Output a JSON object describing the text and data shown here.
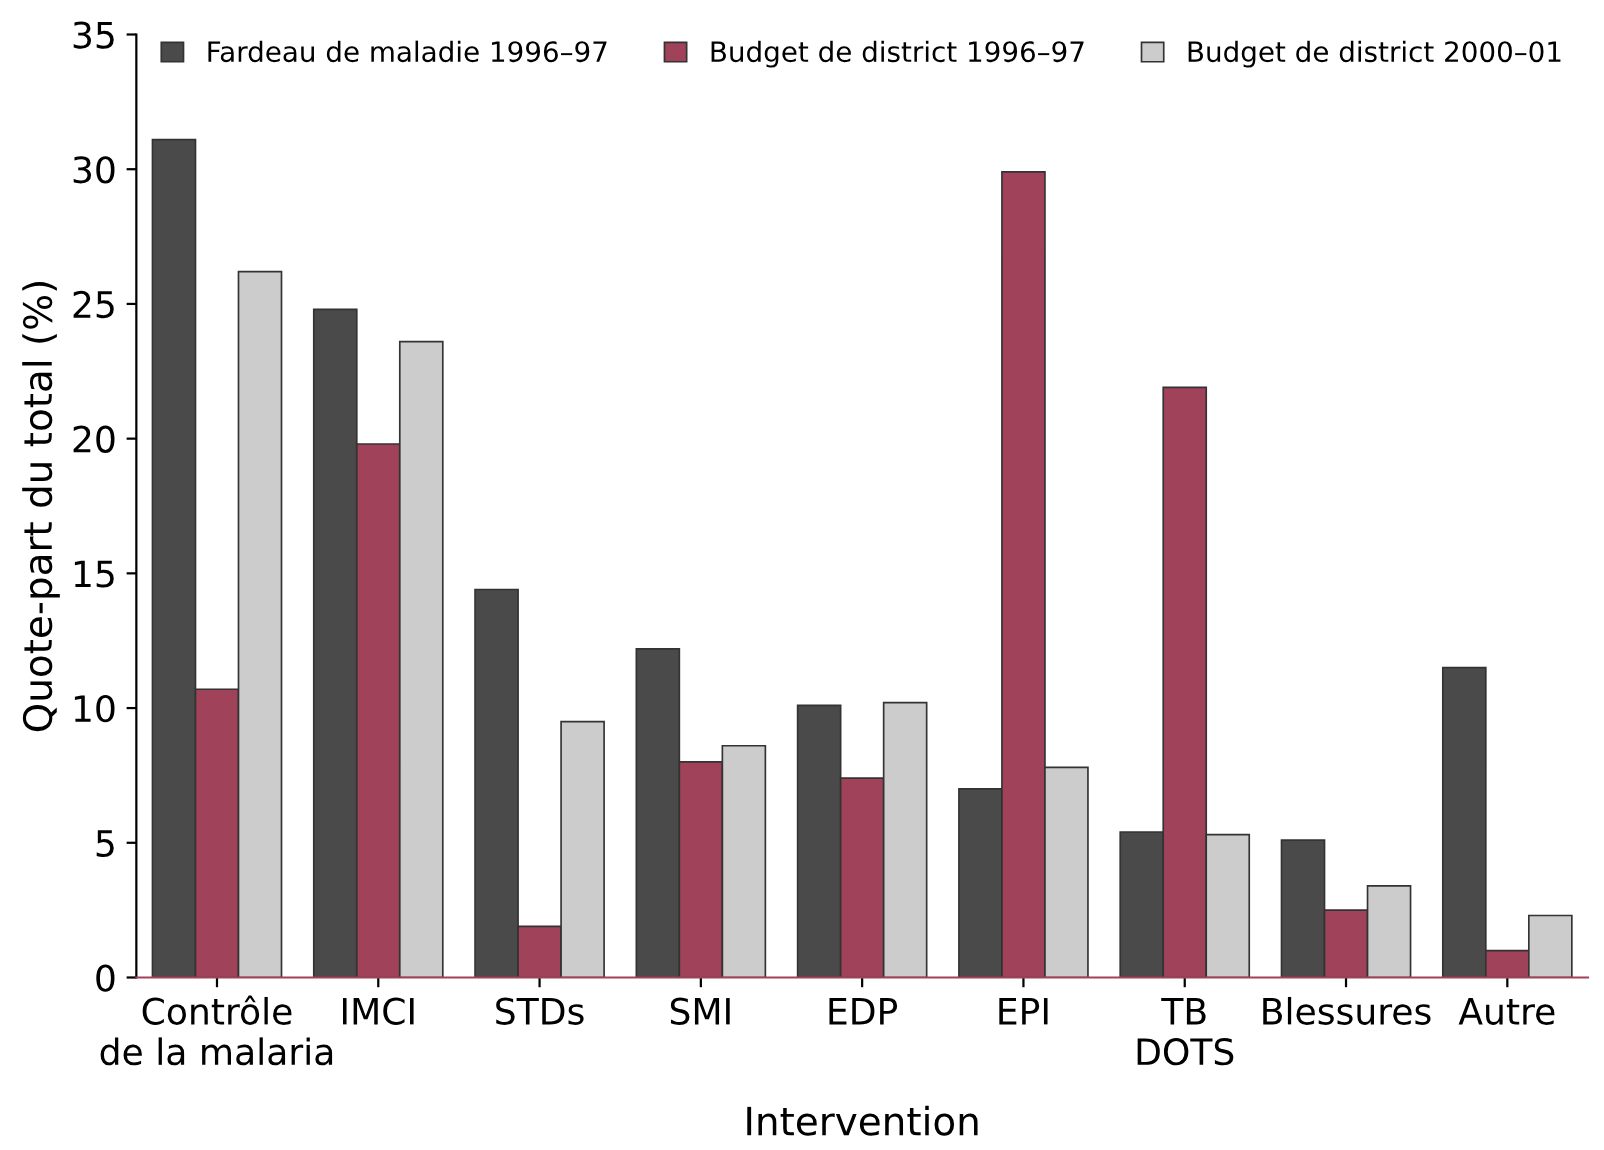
{
  "chart_data": {
    "type": "bar",
    "xlabel": "Intervention",
    "ylabel": "Quote-part du total (%)",
    "categories": [
      "Contrôle\nde la malaria",
      "IMCI",
      "STDs",
      "SMI",
      "EDP",
      "EPI",
      "TB\nDOTS",
      "Blessures",
      "Autre"
    ],
    "series": [
      {
        "name": "Fardeau de maladie 1996–97",
        "color": "#4a4a4a",
        "values": [
          31.1,
          24.8,
          14.4,
          12.2,
          10.1,
          7.0,
          5.4,
          5.1,
          11.5
        ]
      },
      {
        "name": "Budget de district 1996–97",
        "color": "#a0435a",
        "values": [
          10.7,
          19.8,
          1.9,
          8.0,
          7.4,
          29.9,
          21.9,
          2.5,
          1.0
        ]
      },
      {
        "name": "Budget de district 2000–01",
        "color": "#cccccc",
        "values": [
          26.2,
          23.6,
          9.5,
          8.6,
          10.2,
          7.8,
          5.3,
          3.4,
          2.3
        ]
      }
    ],
    "ylim": [
      0,
      35
    ],
    "yticks": [
      0,
      5,
      10,
      15,
      20,
      25,
      30,
      35
    ],
    "grid": false,
    "legend": "top"
  }
}
